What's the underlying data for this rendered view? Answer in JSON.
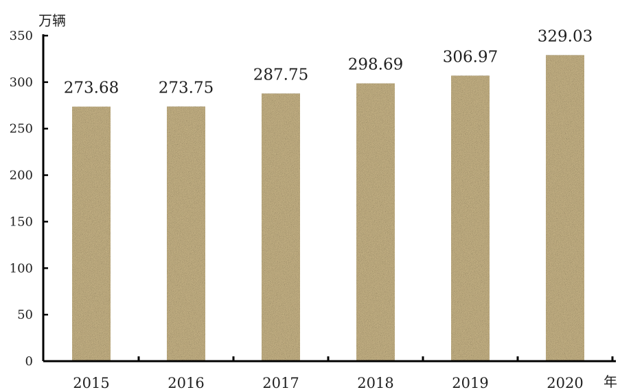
{
  "chart_data": {
    "type": "bar",
    "categories": [
      "2015",
      "2016",
      "2017",
      "2018",
      "2019",
      "2020"
    ],
    "values": [
      273.68,
      273.75,
      287.75,
      298.69,
      306.97,
      329.03
    ],
    "value_labels": [
      "273.68",
      "273.75",
      "287.75",
      "298.69",
      "306.97",
      "329.03"
    ],
    "y_ticks": [
      0,
      50,
      100,
      150,
      200,
      250,
      300,
      350
    ],
    "ylim": [
      0,
      350
    ],
    "ylabel": "万辆",
    "xlabel": "年",
    "title": "",
    "grid": false,
    "bar_color": "#cdb98a",
    "bar_texture_dark": "#8f7a4a",
    "bar_texture_light": "#eadcb1",
    "axis_color": "#000000"
  }
}
